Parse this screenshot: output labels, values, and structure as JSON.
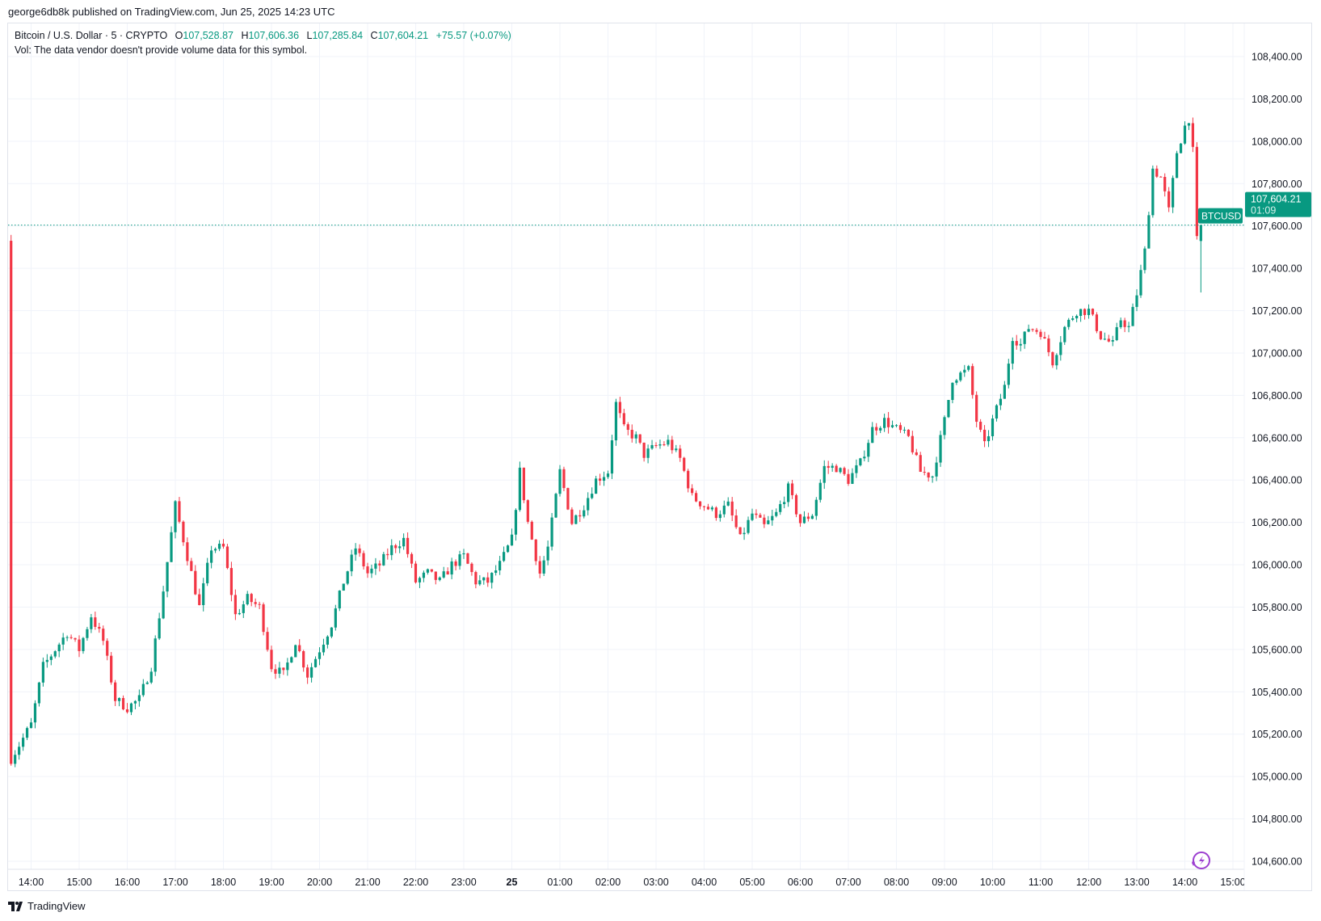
{
  "published": "george6db8k published on TradingView.com, Jun 25, 2025 14:23 UTC",
  "legend": {
    "symbol": "Bitcoin / U.S. Dollar · 5 · CRYPTO",
    "o_label": "O",
    "o": "107,528.87",
    "h_label": "H",
    "h": "107,606.36",
    "l_label": "L",
    "l": "107,285.84",
    "c_label": "C",
    "c": "107,604.21",
    "change": "+75.57 (+0.07%)",
    "vol": "Vol: The data vendor doesn't provide volume data for this symbol."
  },
  "price_tag": {
    "symbol": "BTCUSD",
    "price": "107,604.21",
    "countdown": "01:09"
  },
  "brand": "TradingView",
  "colors": {
    "up": "#089981",
    "down": "#f23645",
    "grid": "#f0f3fa",
    "text": "#131722"
  },
  "chart_data": {
    "type": "candlestick",
    "interval_minutes": 5,
    "time_unit": "minutes since 14:00 Jun 24 UTC",
    "ylim": [
      104600,
      108500
    ],
    "y_ticks": [
      "104,600.00",
      "104,800.00",
      "105,000.00",
      "105,200.00",
      "105,400.00",
      "105,600.00",
      "105,800.00",
      "106,000.00",
      "106,200.00",
      "106,400.00",
      "106,600.00",
      "106,800.00",
      "107,000.00",
      "107,200.00",
      "107,400.00",
      "107,600.00",
      "107,800.00",
      "108,000.00",
      "108,200.00",
      "108,400.00"
    ],
    "y_tick_values": [
      104600,
      104800,
      105000,
      105200,
      105400,
      105600,
      105800,
      106000,
      106200,
      106400,
      106600,
      106800,
      107000,
      107200,
      107400,
      107600,
      107800,
      108000,
      108200,
      108400
    ],
    "x_ticks": [
      "14:00",
      "15:00",
      "16:00",
      "17:00",
      "18:00",
      "19:00",
      "20:00",
      "21:00",
      "22:00",
      "23:00",
      "25",
      "01:00",
      "02:00",
      "03:00",
      "04:00",
      "05:00",
      "06:00",
      "07:00",
      "08:00",
      "09:00",
      "10:00",
      "11:00",
      "12:00",
      "13:00",
      "14:00",
      "15:00"
    ],
    "last_price": 107604.21,
    "last_candle": {
      "o": 107528.87,
      "h": 107606.36,
      "l": 107285.84,
      "c": 107604.21
    },
    "price_path": [
      [
        -25,
        105085
      ],
      [
        0,
        105245
      ],
      [
        15,
        105520
      ],
      [
        30,
        105600
      ],
      [
        45,
        105680
      ],
      [
        60,
        105600
      ],
      [
        75,
        105760
      ],
      [
        90,
        105640
      ],
      [
        105,
        105365
      ],
      [
        120,
        105325
      ],
      [
        135,
        105365
      ],
      [
        150,
        105520
      ],
      [
        165,
        105880
      ],
      [
        180,
        106280
      ],
      [
        195,
        106040
      ],
      [
        210,
        105800
      ],
      [
        225,
        106080
      ],
      [
        240,
        106080
      ],
      [
        255,
        105760
      ],
      [
        270,
        105840
      ],
      [
        285,
        105800
      ],
      [
        300,
        105520
      ],
      [
        315,
        105480
      ],
      [
        330,
        105640
      ],
      [
        345,
        105480
      ],
      [
        360,
        105600
      ],
      [
        375,
        105720
      ],
      [
        390,
        105920
      ],
      [
        405,
        106080
      ],
      [
        420,
        105960
      ],
      [
        435,
        106000
      ],
      [
        450,
        106080
      ],
      [
        465,
        106120
      ],
      [
        480,
        105920
      ],
      [
        495,
        105960
      ],
      [
        510,
        105920
      ],
      [
        525,
        106000
      ],
      [
        540,
        106040
      ],
      [
        555,
        105920
      ],
      [
        570,
        105920
      ],
      [
        585,
        106000
      ],
      [
        600,
        106120
      ],
      [
        610,
        106440
      ],
      [
        620,
        106200
      ],
      [
        635,
        105960
      ],
      [
        645,
        106080
      ],
      [
        660,
        106440
      ],
      [
        675,
        106200
      ],
      [
        690,
        106280
      ],
      [
        705,
        106400
      ],
      [
        720,
        106440
      ],
      [
        730,
        106760
      ],
      [
        740,
        106640
      ],
      [
        755,
        106600
      ],
      [
        765,
        106520
      ],
      [
        780,
        106560
      ],
      [
        795,
        106580
      ],
      [
        810,
        106500
      ],
      [
        825,
        106320
      ],
      [
        840,
        106280
      ],
      [
        855,
        106240
      ],
      [
        870,
        106280
      ],
      [
        885,
        106120
      ],
      [
        900,
        106240
      ],
      [
        915,
        106180
      ],
      [
        930,
        106240
      ],
      [
        945,
        106360
      ],
      [
        960,
        106200
      ],
      [
        975,
        106240
      ],
      [
        990,
        106460
      ],
      [
        1005,
        106460
      ],
      [
        1020,
        106400
      ],
      [
        1035,
        106480
      ],
      [
        1050,
        106640
      ],
      [
        1065,
        106680
      ],
      [
        1080,
        106640
      ],
      [
        1095,
        106600
      ],
      [
        1110,
        106440
      ],
      [
        1125,
        106420
      ],
      [
        1140,
        106680
      ],
      [
        1150,
        106880
      ],
      [
        1170,
        106920
      ],
      [
        1180,
        106680
      ],
      [
        1190,
        106560
      ],
      [
        1200,
        106680
      ],
      [
        1215,
        106840
      ],
      [
        1225,
        107080
      ],
      [
        1235,
        107040
      ],
      [
        1245,
        107120
      ],
      [
        1260,
        107100
      ],
      [
        1275,
        106960
      ],
      [
        1290,
        107120
      ],
      [
        1305,
        107200
      ],
      [
        1320,
        107200
      ],
      [
        1335,
        107080
      ],
      [
        1350,
        107040
      ],
      [
        1360,
        107160
      ],
      [
        1370,
        107120
      ],
      [
        1380,
        107280
      ],
      [
        1390,
        107480
      ],
      [
        1400,
        107870
      ],
      [
        1410,
        107830
      ],
      [
        1420,
        107670
      ],
      [
        1430,
        107950
      ],
      [
        1440,
        108070
      ],
      [
        1445,
        108110
      ],
      [
        1450,
        107950
      ],
      [
        1455,
        107530
      ]
    ]
  }
}
